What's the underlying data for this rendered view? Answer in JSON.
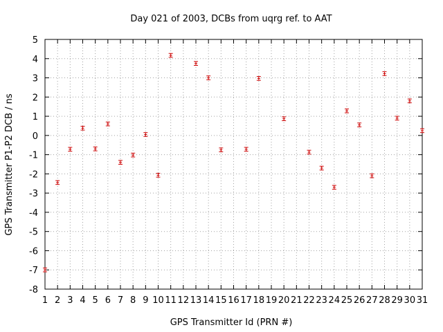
{
  "chart_data": {
    "type": "scatter",
    "title": "Day 021 of 2003, DCBs from uqrg ref. to AAT",
    "xlabel": "GPS Transmitter Id (PRN #)",
    "ylabel": "GPS Transmitter P1-P2 DCB / ns",
    "xlim": [
      1,
      31
    ],
    "ylim": [
      -8,
      5
    ],
    "x_ticks": [
      1,
      2,
      3,
      4,
      5,
      6,
      7,
      8,
      9,
      10,
      11,
      12,
      13,
      14,
      15,
      16,
      17,
      18,
      19,
      20,
      21,
      22,
      23,
      24,
      25,
      26,
      27,
      28,
      29,
      30,
      31
    ],
    "y_ticks": [
      -8,
      -7,
      -6,
      -5,
      -4,
      -3,
      -2,
      -1,
      0,
      1,
      2,
      3,
      4,
      5
    ],
    "grid": true,
    "error_bars": true,
    "series": [
      {
        "marker_color": "#cc0000",
        "points": [
          {
            "x": 1,
            "y": -7.0,
            "err": 0.1
          },
          {
            "x": 2,
            "y": -2.45,
            "err": 0.1
          },
          {
            "x": 3,
            "y": -0.72,
            "err": 0.1
          },
          {
            "x": 4,
            "y": 0.38,
            "err": 0.1
          },
          {
            "x": 5,
            "y": -0.7,
            "err": 0.1
          },
          {
            "x": 6,
            "y": 0.6,
            "err": 0.1
          },
          {
            "x": 7,
            "y": -1.4,
            "err": 0.1
          },
          {
            "x": 8,
            "y": -1.02,
            "err": 0.1
          },
          {
            "x": 9,
            "y": 0.05,
            "err": 0.1
          },
          {
            "x": 10,
            "y": -2.07,
            "err": 0.1
          },
          {
            "x": 11,
            "y": 4.17,
            "err": 0.1
          },
          {
            "x": 13,
            "y": 3.75,
            "err": 0.1
          },
          {
            "x": 14,
            "y": 3.0,
            "err": 0.1
          },
          {
            "x": 15,
            "y": -0.75,
            "err": 0.1
          },
          {
            "x": 17,
            "y": -0.72,
            "err": 0.1
          },
          {
            "x": 18,
            "y": 2.97,
            "err": 0.1
          },
          {
            "x": 20,
            "y": 0.87,
            "err": 0.1
          },
          {
            "x": 22,
            "y": -0.87,
            "err": 0.1
          },
          {
            "x": 23,
            "y": -1.7,
            "err": 0.1
          },
          {
            "x": 24,
            "y": -2.7,
            "err": 0.1
          },
          {
            "x": 25,
            "y": 1.28,
            "err": 0.1
          },
          {
            "x": 26,
            "y": 0.55,
            "err": 0.1
          },
          {
            "x": 27,
            "y": -2.1,
            "err": 0.1
          },
          {
            "x": 28,
            "y": 3.22,
            "err": 0.1
          },
          {
            "x": 29,
            "y": 0.9,
            "err": 0.1
          },
          {
            "x": 30,
            "y": 1.8,
            "err": 0.1
          },
          {
            "x": 31,
            "y": 0.25,
            "err": 0.1
          }
        ]
      }
    ]
  }
}
